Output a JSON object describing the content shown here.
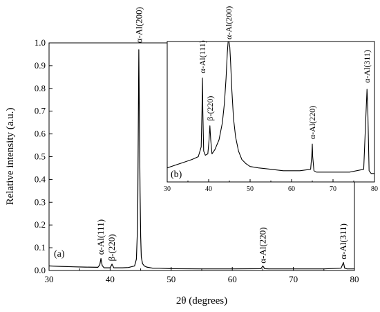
{
  "chart_data": [
    {
      "type": "line",
      "panel_label": "(a)",
      "xlabel": "2θ (degrees)",
      "ylabel": "Relative intensity (a.u.)",
      "xlim": [
        30,
        80
      ],
      "ylim": [
        0,
        1.0
      ],
      "x_ticks": [
        "30",
        "40",
        "50",
        "60",
        "70",
        "80"
      ],
      "y_ticks": [
        "0.0",
        "0.1",
        "0.2",
        "0.3",
        "0.4",
        "0.5",
        "0.6",
        "0.7",
        "0.8",
        "0.9",
        "1.0"
      ],
      "series": [
        {
          "x": [
            30,
            32,
            34,
            36,
            38,
            38.3,
            38.5,
            38.7,
            39,
            40,
            40.3,
            40.6,
            41,
            42,
            43,
            44,
            44.3,
            44.5,
            44.6,
            44.7,
            44.8,
            44.9,
            45.0,
            45.1,
            45.3,
            45.6,
            46,
            47,
            48,
            50,
            55,
            60,
            64.7,
            65.0,
            65.3,
            66,
            70,
            75,
            77.8,
            78.2,
            78.4,
            78.8,
            80
          ],
          "y": [
            0.02,
            0.018,
            0.016,
            0.015,
            0.014,
            0.025,
            0.053,
            0.022,
            0.012,
            0.012,
            0.028,
            0.012,
            0.012,
            0.012,
            0.013,
            0.02,
            0.05,
            0.2,
            0.6,
            0.97,
            0.67,
            0.35,
            0.15,
            0.06,
            0.03,
            0.02,
            0.015,
            0.01,
            0.01,
            0.008,
            0.007,
            0.007,
            0.008,
            0.02,
            0.008,
            0.007,
            0.007,
            0.007,
            0.01,
            0.035,
            0.01,
            0.007,
            0.007
          ]
        }
      ],
      "annotations": [
        {
          "text": "α-Al(111)",
          "x": 38.5
        },
        {
          "text": "β-(220)",
          "x": 40.3
        },
        {
          "text": "α-Al(200)",
          "x": 44.75
        },
        {
          "text": "α-Al(220)",
          "x": 65.0
        },
        {
          "text": "α-Al(311)",
          "x": 78.2
        }
      ]
    },
    {
      "type": "line",
      "panel_label": "(b)",
      "xlim": [
        30,
        80
      ],
      "ylim": [
        0,
        1.0
      ],
      "x_ticks": [
        "30",
        "40",
        "50",
        "60",
        "70",
        "80"
      ],
      "series": [
        {
          "x": [
            30,
            32,
            34,
            36,
            37.5,
            38.2,
            38.4,
            38.5,
            38.6,
            38.8,
            39.2,
            39.8,
            40.1,
            40.3,
            40.5,
            40.8,
            41.5,
            42.5,
            43.3,
            43.8,
            44.2,
            44.5,
            44.7,
            44.9,
            45.1,
            45.3,
            45.6,
            46.0,
            46.5,
            47.2,
            48,
            49,
            50,
            52,
            55,
            58,
            60,
            62,
            64.6,
            64.9,
            65.0,
            65.1,
            65.4,
            66,
            70,
            74,
            77.4,
            77.9,
            78.2,
            78.4,
            78.7,
            79.2,
            80
          ],
          "y": [
            0.1,
            0.12,
            0.14,
            0.16,
            0.18,
            0.25,
            0.52,
            0.74,
            0.5,
            0.22,
            0.19,
            0.2,
            0.3,
            0.4,
            0.3,
            0.2,
            0.23,
            0.3,
            0.42,
            0.56,
            0.74,
            0.92,
            1.0,
            1.0,
            0.96,
            0.85,
            0.65,
            0.45,
            0.32,
            0.22,
            0.16,
            0.13,
            0.11,
            0.1,
            0.09,
            0.08,
            0.08,
            0.08,
            0.09,
            0.2,
            0.27,
            0.18,
            0.08,
            0.07,
            0.07,
            0.07,
            0.09,
            0.45,
            0.66,
            0.5,
            0.08,
            0.06,
            0.06
          ]
        }
      ],
      "annotations": [
        {
          "text": "α-Al(111)",
          "x": 38.5
        },
        {
          "text": "β-(220)",
          "x": 40.3
        },
        {
          "text": "α-Al(200)",
          "x": 44.8
        },
        {
          "text": "α-Al(220)",
          "x": 65.0
        },
        {
          "text": "α-Al(311)",
          "x": 78.2
        }
      ]
    }
  ]
}
